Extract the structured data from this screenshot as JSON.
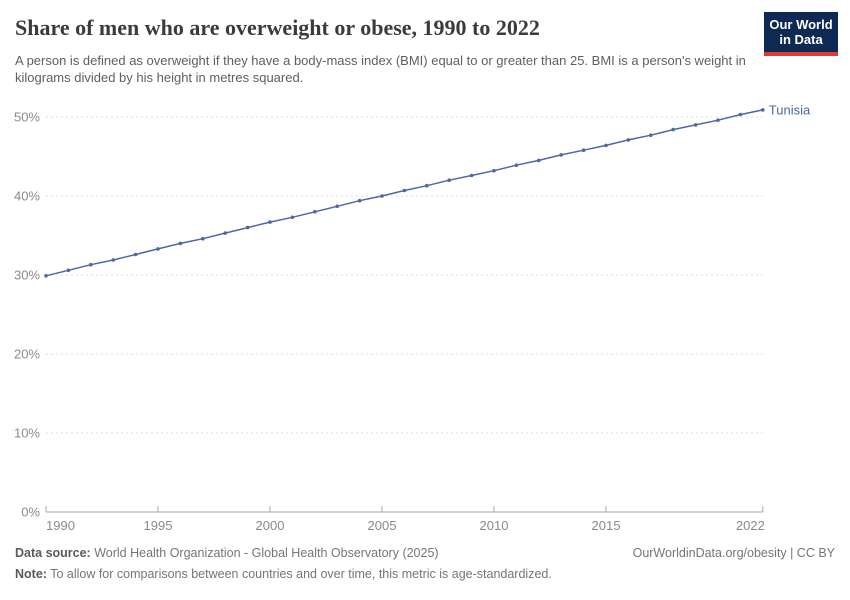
{
  "header": {
    "title": "Share of men who are overweight or obese, 1990 to 2022",
    "subtitle": "A person is defined as overweight if they have a body-mass index (BMI) equal to or greater than 25. BMI is a person's weight in kilograms divided by his height in metres squared.",
    "logo": {
      "line1": "Our World",
      "line2": "in Data",
      "bg_color": "#0e2a52",
      "stripe_color": "#dc3a32"
    }
  },
  "chart_data": {
    "type": "line",
    "title": "Share of men who are overweight or obese, 1990 to 2022",
    "xlabel": "",
    "ylabel": "",
    "xlim": [
      1990,
      2022
    ],
    "ylim": [
      0,
      52
    ],
    "grid": "horizontal-dashed",
    "legend_position": "end-of-line-label",
    "x": [
      1990,
      1991,
      1992,
      1993,
      1994,
      1995,
      1996,
      1997,
      1998,
      1999,
      2000,
      2001,
      2002,
      2003,
      2004,
      2005,
      2006,
      2007,
      2008,
      2009,
      2010,
      2011,
      2012,
      2013,
      2014,
      2015,
      2016,
      2017,
      2018,
      2019,
      2020,
      2021,
      2022
    ],
    "series": [
      {
        "name": "Tunisia",
        "color": "#4b69a5",
        "values": [
          29.9,
          30.6,
          31.3,
          31.9,
          32.6,
          33.3,
          34.0,
          34.6,
          35.3,
          36.0,
          36.7,
          37.3,
          38.0,
          38.7,
          39.4,
          40.0,
          40.7,
          41.3,
          42.0,
          42.6,
          43.2,
          43.9,
          44.5,
          45.2,
          45.8,
          46.4,
          47.1,
          47.7,
          48.4,
          49.0,
          49.6,
          50.3,
          50.9
        ]
      }
    ],
    "x_tick_years": [
      1990,
      1995,
      2000,
      2005,
      2010,
      2015,
      2022
    ],
    "y_ticks": [
      {
        "value": 0,
        "label": "0%"
      },
      {
        "value": 10,
        "label": "10%"
      },
      {
        "value": 20,
        "label": "20%"
      },
      {
        "value": 30,
        "label": "30%"
      },
      {
        "value": 40,
        "label": "40%"
      },
      {
        "value": 50,
        "label": "50%"
      }
    ]
  },
  "footer": {
    "source_label": "Data source:",
    "source_text": " World Health Organization - Global Health Observatory (2025)",
    "note_label": "Note:",
    "note_text": " To allow for comparisons between countries and over time, this metric is age-standardized.",
    "credit": "OurWorldinData.org/obesity | CC BY"
  }
}
